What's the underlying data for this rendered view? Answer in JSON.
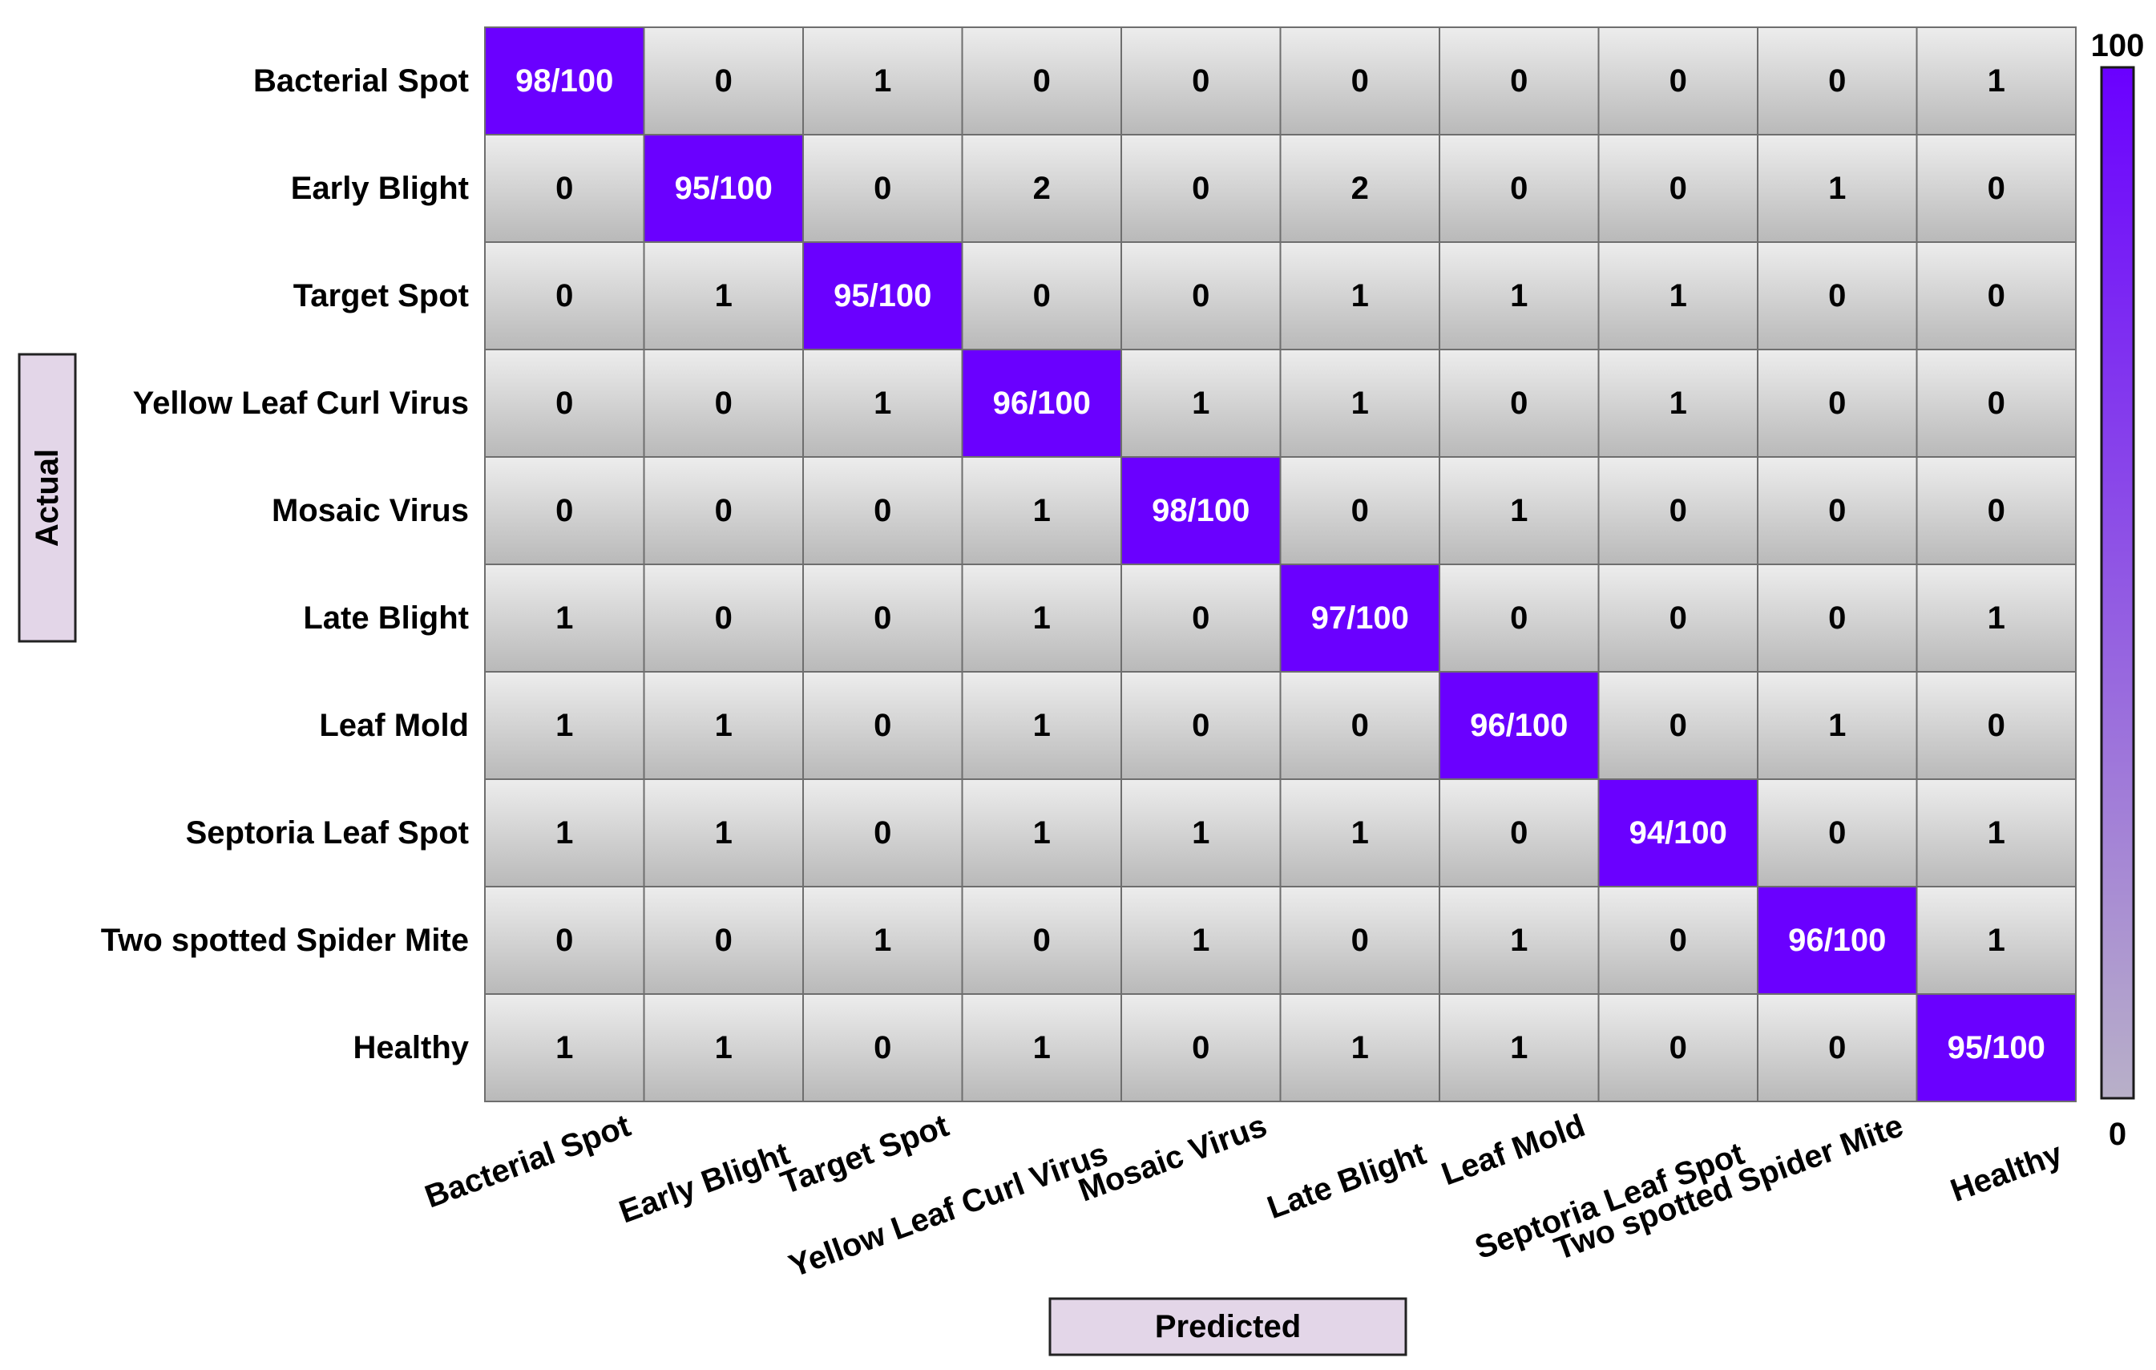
{
  "chart_data": {
    "type": "heatmap",
    "title": "",
    "xlabel": "Predicted",
    "ylabel": "Actual",
    "rows": [
      "Bacterial Spot",
      "Early Blight",
      "Target Spot",
      "Yellow Leaf Curl Virus",
      "Mosaic Virus",
      "Late Blight",
      "Leaf Mold",
      "Septoria Leaf Spot",
      "Two spotted Spider Mite",
      "Healthy"
    ],
    "columns": [
      "Bacterial Spot",
      "Early Blight",
      "Target Spot",
      "Yellow Leaf Curl Virus",
      "Mosaic Virus",
      "Late Blight",
      "Leaf Mold",
      "Septoria Leaf Spot",
      "Two spotted Spider Mite",
      "Healthy"
    ],
    "values": [
      [
        98,
        0,
        1,
        0,
        0,
        0,
        0,
        0,
        0,
        1
      ],
      [
        0,
        95,
        0,
        2,
        0,
        2,
        0,
        0,
        1,
        0
      ],
      [
        0,
        1,
        95,
        0,
        0,
        1,
        1,
        1,
        0,
        0
      ],
      [
        0,
        0,
        1,
        96,
        1,
        1,
        0,
        1,
        0,
        0
      ],
      [
        0,
        0,
        0,
        1,
        98,
        0,
        1,
        0,
        0,
        0
      ],
      [
        1,
        0,
        0,
        1,
        0,
        97,
        0,
        0,
        0,
        1
      ],
      [
        1,
        1,
        0,
        1,
        0,
        0,
        96,
        0,
        1,
        0
      ],
      [
        1,
        1,
        0,
        1,
        1,
        1,
        0,
        94,
        0,
        1
      ],
      [
        0,
        0,
        1,
        0,
        1,
        0,
        1,
        0,
        96,
        1
      ],
      [
        1,
        1,
        0,
        1,
        0,
        1,
        1,
        0,
        0,
        95
      ]
    ],
    "diagonal_suffix": "/100",
    "colorbar": {
      "min": 0,
      "max": 100,
      "min_label": "0",
      "max_label": "100"
    },
    "colors": {
      "diagonal": "#6a00ff",
      "diagonal_text": "#ffffff",
      "offdiagonal_top": "#ededed",
      "offdiagonal_bottom": "#b9b9b9",
      "offdiagonal_text": "#000000",
      "colorbar_top": "#6a00ff",
      "colorbar_bottom": "#b8b0c8",
      "axis_box": "#e3d6e8"
    }
  }
}
